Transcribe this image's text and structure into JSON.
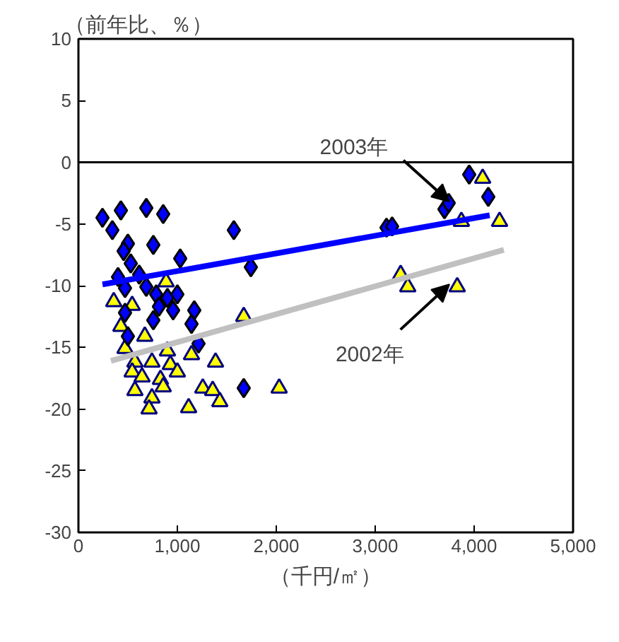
{
  "chart_data": {
    "type": "scatter",
    "ylabel": "（前年比、％）",
    "xlabel": "（千円/㎡）",
    "xlim": [
      0,
      5000
    ],
    "xticks": [
      {
        "value": 0,
        "label": "0"
      },
      {
        "value": 1000,
        "label": "1,000"
      },
      {
        "value": 2000,
        "label": "2,000"
      },
      {
        "value": 3000,
        "label": "3,000"
      },
      {
        "value": 4000,
        "label": "4,000"
      },
      {
        "value": 5000,
        "label": "5,000"
      }
    ],
    "ylim": [
      -30,
      10
    ],
    "yticks": [
      -30,
      -25,
      -20,
      -15,
      -10,
      -5,
      0,
      5,
      10
    ],
    "grid": false,
    "ref_lines": [
      {
        "axis": "y",
        "value": 0,
        "color": "#000000"
      }
    ],
    "series": [
      {
        "marker": "triangle",
        "color": "#ffff00",
        "x": [
          886,
          357,
          543,
          429,
          1671,
          671,
          471,
          900,
          1143,
          743,
          571,
          1386,
          929,
          1000,
          543,
          829,
          643,
          1257,
          1357,
          571,
          2029,
          857,
          743,
          1429,
          1114,
          714,
          3871,
          4257,
          3257,
          3329,
          3829,
          4086
        ],
        "values": [
          -9.7,
          -11.3,
          -11.6,
          -13.3,
          -12.5,
          -14.1,
          -15.1,
          -15.3,
          -15.6,
          -16.2,
          -16.2,
          -16.2,
          -16.4,
          -17.0,
          -17.0,
          -17.6,
          -17.4,
          -18.3,
          -18.5,
          -18.5,
          -18.3,
          -18.2,
          -19.1,
          -19.4,
          -19.9,
          -20.0,
          -4.8,
          -4.8,
          -9.1,
          -10.1,
          -10.1,
          -1.3
        ]
      },
      {
        "marker": "diamond",
        "color": "#0000ff",
        "x": [
          243,
          429,
          686,
          857,
          343,
          1571,
          500,
          757,
          457,
          1029,
          529,
          1743,
          400,
          614,
          686,
          471,
          786,
          900,
          1000,
          814,
          957,
          1171,
          471,
          757,
          1143,
          500,
          1214,
          1671,
          3114,
          3171,
          3700,
          3743,
          4143,
          3950
        ],
        "values": [
          -4.5,
          -3.9,
          -3.7,
          -4.2,
          -5.5,
          -5.5,
          -6.6,
          -6.7,
          -7.2,
          -7.8,
          -8.2,
          -8.5,
          -9.3,
          -9.1,
          -10.1,
          -10.2,
          -10.7,
          -11.0,
          -10.7,
          -11.7,
          -12.0,
          -12.0,
          -12.2,
          -12.8,
          -13.1,
          -14.1,
          -14.7,
          -18.3,
          -5.3,
          -5.2,
          -3.8,
          -3.3,
          -2.8,
          -1.0
        ]
      },
      {
        "type": "line",
        "color": "#0000ff",
        "x": [
          243,
          4157
        ],
        "values": [
          -9.9,
          -4.3
        ]
      },
      {
        "type": "line",
        "color": "#c0c0c0",
        "x": [
          329,
          4300
        ],
        "values": [
          -16.1,
          -7.1
        ]
      }
    ],
    "annotations": [
      {
        "text": "2003年",
        "x": 3750,
        "y": -3.2
      },
      {
        "text": "2002年",
        "x": 3750,
        "y": -9.9
      }
    ]
  }
}
